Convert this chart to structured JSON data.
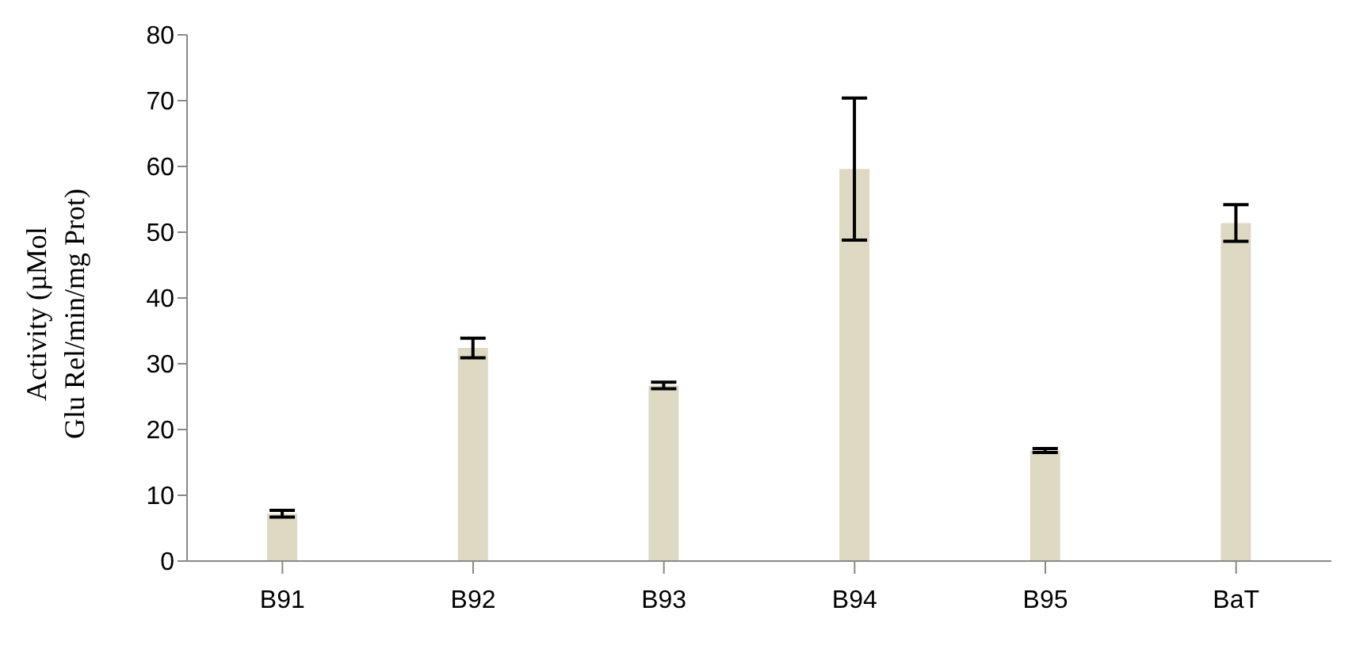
{
  "chart_data": {
    "type": "bar",
    "ylabel": "Activity (µMol\nGlu Rel/min/mg Prot)",
    "categories": [
      "B91",
      "B92",
      "B93",
      "B94",
      "B95",
      "BaT"
    ],
    "series": [
      {
        "color": "#ddd9c3",
        "values": [
          7.2,
          32.4,
          26.7,
          59.6,
          16.8,
          51.4
        ],
        "errors": [
          0.5,
          1.5,
          0.5,
          10.8,
          0.3,
          2.8
        ]
      }
    ],
    "ylim": [
      0,
      80
    ],
    "yticks": [
      0,
      10,
      20,
      30,
      40,
      50,
      60,
      70,
      80
    ],
    "grid": false,
    "legend": false
  }
}
